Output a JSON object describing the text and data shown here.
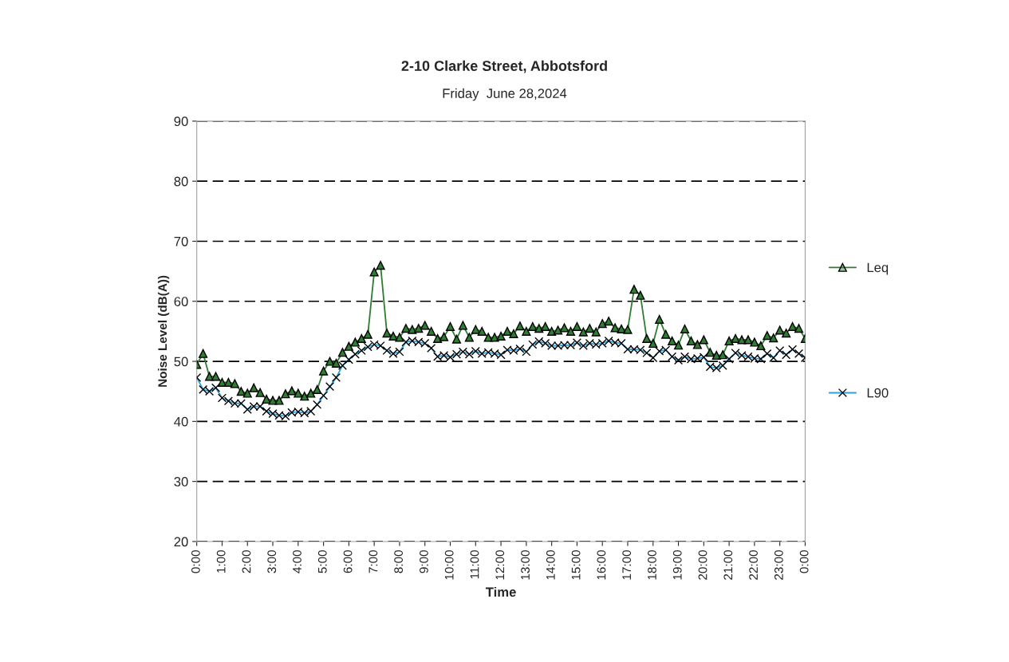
{
  "chart_data": {
    "type": "line",
    "title": "2-10 Clarke Street, Abbotsford",
    "subtitle": "Friday  June 28,2024",
    "xlabel": "Time",
    "ylabel": "Noise Level (dB(A))",
    "x": [
      0,
      0.25,
      0.5,
      0.75,
      1,
      1.25,
      1.5,
      1.75,
      2,
      2.25,
      2.5,
      2.75,
      3,
      3.25,
      3.5,
      3.75,
      4,
      4.25,
      4.5,
      4.75,
      5,
      5.25,
      5.5,
      5.75,
      6,
      6.25,
      6.5,
      6.75,
      7,
      7.25,
      7.5,
      7.75,
      8,
      8.25,
      8.5,
      8.75,
      9,
      9.25,
      9.5,
      9.75,
      10,
      10.25,
      10.5,
      10.75,
      11,
      11.25,
      11.5,
      11.75,
      12,
      12.25,
      12.5,
      12.75,
      13,
      13.25,
      13.5,
      13.75,
      14,
      14.25,
      14.5,
      14.75,
      15,
      15.25,
      15.5,
      15.75,
      16,
      16.25,
      16.5,
      16.75,
      17,
      17.25,
      17.5,
      17.75,
      18,
      18.25,
      18.5,
      18.75,
      19,
      19.25,
      19.5,
      19.75,
      20,
      20.25,
      20.5,
      20.75,
      21,
      21.25,
      21.5,
      21.75,
      22,
      22.25,
      22.5,
      22.75,
      23,
      23.25,
      23.5,
      23.75,
      24
    ],
    "series": [
      {
        "name": "Leq",
        "color": "#2e7d32",
        "marker": "triangle",
        "values": [
          49.5,
          51.3,
          47.5,
          47.5,
          46.5,
          46.5,
          46.3,
          45.0,
          44.7,
          45.6,
          44.8,
          43.7,
          43.5,
          43.5,
          44.6,
          45.1,
          44.7,
          44.2,
          44.7,
          45.3,
          48.4,
          50.0,
          49.7,
          51.5,
          52.5,
          53.2,
          53.8,
          54.5,
          64.9,
          66.0,
          54.7,
          54.2,
          54.0,
          55.5,
          55.3,
          55.5,
          56.0,
          55.0,
          53.8,
          54.1,
          55.8,
          53.7,
          56.0,
          54.0,
          55.3,
          55.0,
          54.0,
          54.0,
          54.2,
          55.0,
          54.6,
          55.9,
          55.0,
          55.8,
          55.5,
          55.8,
          55.0,
          55.2,
          55.6,
          55.0,
          55.8,
          54.9,
          55.5,
          54.9,
          56.3,
          56.7,
          55.6,
          55.4,
          55.3,
          62.0,
          61.0,
          53.8,
          53.0,
          57.0,
          54.5,
          53.4,
          52.7,
          55.4,
          53.4,
          52.8,
          53.6,
          51.5,
          51.0,
          51.1,
          53.4,
          53.8,
          53.6,
          53.6,
          53.2,
          52.6,
          54.3,
          53.9,
          55.2,
          54.7,
          55.8,
          55.5,
          53.8
        ]
      },
      {
        "name": "L90",
        "color": "#29a3e0",
        "marker": "cross",
        "values": [
          47.3,
          45.3,
          45.0,
          45.6,
          43.9,
          43.4,
          43.0,
          43.0,
          42.0,
          42.5,
          42.5,
          41.7,
          41.3,
          41.0,
          40.9,
          41.5,
          41.6,
          41.4,
          41.7,
          42.8,
          44.3,
          45.8,
          47.3,
          49.3,
          50.3,
          51.2,
          51.8,
          52.4,
          52.8,
          52.6,
          51.8,
          51.3,
          51.6,
          53.2,
          53.4,
          53.2,
          53.0,
          52.2,
          50.8,
          51.0,
          50.7,
          51.2,
          51.6,
          51.2,
          51.7,
          51.3,
          51.5,
          51.3,
          51.1,
          51.9,
          51.8,
          52.1,
          51.6,
          52.8,
          53.3,
          53.0,
          52.6,
          52.6,
          52.7,
          52.7,
          53.1,
          52.6,
          53.0,
          52.8,
          53.0,
          53.4,
          53.1,
          53.0,
          52.0,
          52.0,
          51.9,
          51.4,
          50.6,
          51.7,
          51.9,
          50.8,
          50.2,
          50.8,
          50.4,
          50.5,
          50.7,
          49.1,
          48.9,
          49.3,
          50.4,
          51.4,
          51.0,
          50.8,
          50.5,
          50.4,
          51.3,
          50.6,
          51.8,
          51.1,
          52.0,
          51.3,
          50.6
        ]
      }
    ],
    "xlim": [
      0,
      24
    ],
    "xticks": [
      {
        "value": 0,
        "label": "0:00"
      },
      {
        "value": 1,
        "label": "1:00"
      },
      {
        "value": 2,
        "label": "2:00"
      },
      {
        "value": 3,
        "label": "3:00"
      },
      {
        "value": 4,
        "label": "4:00"
      },
      {
        "value": 5,
        "label": "5:00"
      },
      {
        "value": 6,
        "label": "6:00"
      },
      {
        "value": 7,
        "label": "7:00"
      },
      {
        "value": 8,
        "label": "8:00"
      },
      {
        "value": 9,
        "label": "9:00"
      },
      {
        "value": 10,
        "label": "10:00"
      },
      {
        "value": 11,
        "label": "11:00"
      },
      {
        "value": 12,
        "label": "12:00"
      },
      {
        "value": 13,
        "label": "13:00"
      },
      {
        "value": 14,
        "label": "14:00"
      },
      {
        "value": 15,
        "label": "15:00"
      },
      {
        "value": 16,
        "label": "16:00"
      },
      {
        "value": 17,
        "label": "17:00"
      },
      {
        "value": 18,
        "label": "18:00"
      },
      {
        "value": 19,
        "label": "19:00"
      },
      {
        "value": 20,
        "label": "20:00"
      },
      {
        "value": 21,
        "label": "21:00"
      },
      {
        "value": 22,
        "label": "22:00"
      },
      {
        "value": 23,
        "label": "23:00"
      },
      {
        "value": 24,
        "label": "0:00"
      }
    ],
    "ylim": [
      20,
      90
    ],
    "yticks": [
      20,
      30,
      40,
      50,
      60,
      70,
      80,
      90
    ],
    "grid": "y",
    "legend": "right"
  }
}
